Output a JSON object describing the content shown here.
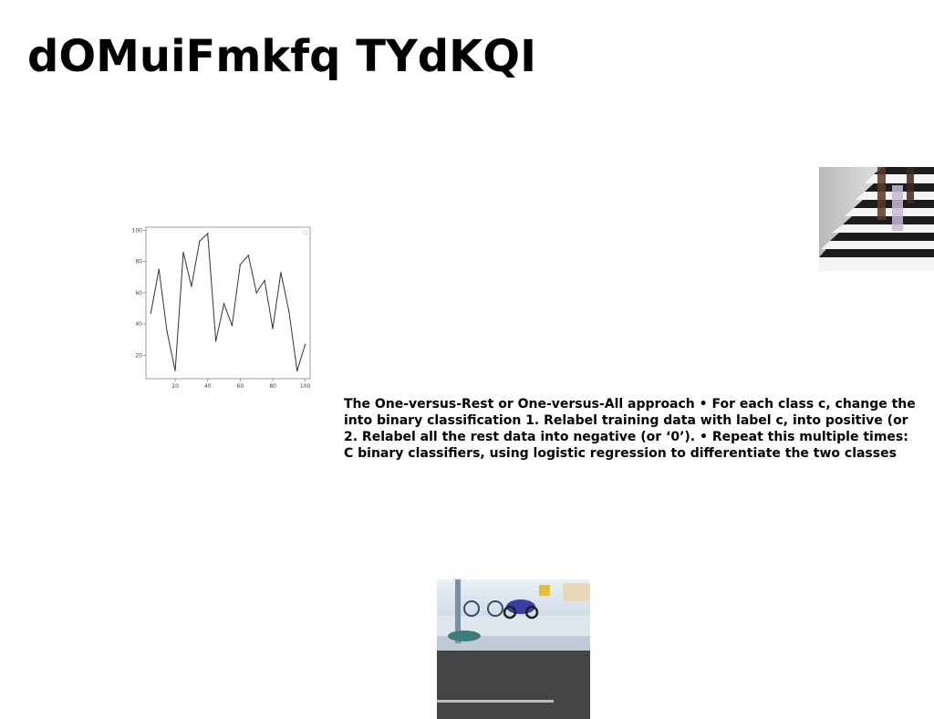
{
  "page": {
    "title": "dOMuiFmkfq TYdKQI"
  },
  "body": {
    "lines": [
      "The One-versus-Rest or One-versus-All approach • For each class c, change the",
      "into binary classification 1. Relabel training data with label c, into positive (or",
      "2. Relabel all the rest data into negative (or ‘0’). • Repeat this multiple times:",
      "C binary classifiers, using logistic regression to differentiate the two classes"
    ]
  },
  "images": {
    "stairs": "photo of people walking on stairs",
    "street": "photo of a street with bicycles and motorcycles"
  },
  "chart_data": {
    "type": "line",
    "x": [
      5,
      10,
      15,
      20,
      25,
      30,
      35,
      40,
      45,
      50,
      55,
      60,
      65,
      70,
      75,
      80,
      85,
      90,
      95,
      100
    ],
    "series": [
      {
        "values": [
          47,
          75,
          35,
          10,
          86,
          64,
          93,
          98,
          29,
          53,
          39,
          78,
          84,
          60,
          68,
          37,
          73,
          48,
          10,
          27
        ]
      }
    ],
    "xticks": [
      20,
      40,
      60,
      80,
      100
    ],
    "yticks": [
      20,
      40,
      60,
      80,
      100
    ],
    "xlim": [
      2,
      103
    ],
    "ylim": [
      5,
      102
    ],
    "grid": false,
    "line_color": "#333333"
  }
}
